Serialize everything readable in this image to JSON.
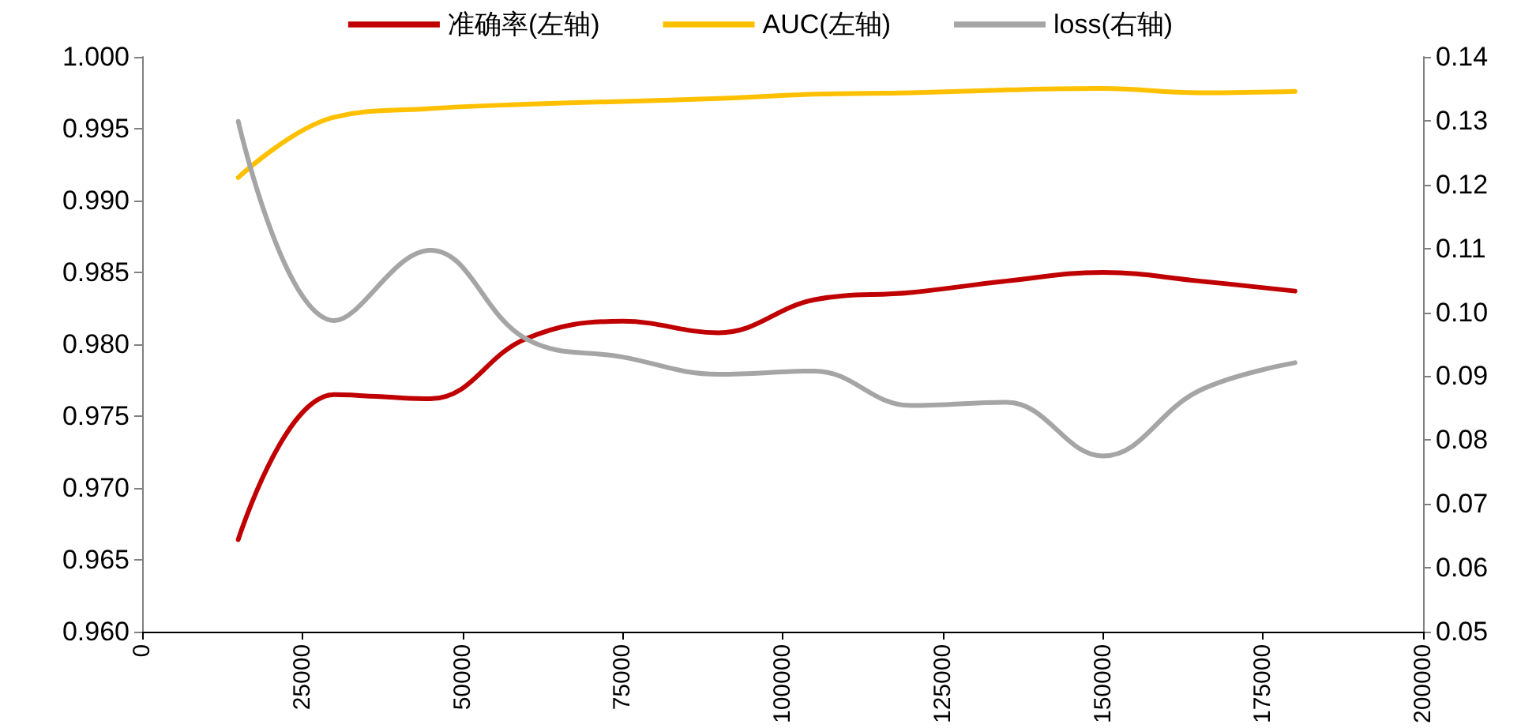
{
  "chart_data": {
    "type": "line",
    "x": [
      15000,
      30000,
      45000,
      60000,
      75000,
      90000,
      105000,
      120000,
      135000,
      150000,
      165000,
      180000
    ],
    "series": [
      {
        "name": "准确率(左轴)",
        "color": "#c00000",
        "values": [
          0.9664,
          0.9765,
          0.9762,
          0.9804,
          0.9816,
          0.9808,
          0.9831,
          0.9836,
          0.9844,
          0.985,
          0.9844,
          0.9837
        ]
      },
      {
        "name": "AUC(左轴)",
        "color": "#ffc000",
        "values": [
          0.9916,
          0.9958,
          0.9964,
          0.9967,
          0.9969,
          0.9971,
          0.9974,
          0.9975,
          0.9977,
          0.9978,
          0.9975,
          0.9976
        ]
      },
      {
        "name": "loss(右轴)",
        "color": "#a5a5a5",
        "axis": "y2",
        "values": [
          0.1299,
          0.0987,
          0.1097,
          0.0958,
          0.093,
          0.0903,
          0.0908,
          0.0854,
          0.0859,
          0.0775,
          0.0877,
          0.0921
        ]
      }
    ],
    "xlim": [
      0,
      200000
    ],
    "xticks": [
      0,
      25000,
      50000,
      75000,
      100000,
      125000,
      150000,
      175000,
      200000
    ],
    "ylim": [
      0.96,
      1.0
    ],
    "yticks": [
      {
        "value": 0.96,
        "label": "0.960"
      },
      0.965,
      {
        "value": 0.97,
        "label": "0.970"
      },
      0.975,
      {
        "value": 0.98,
        "label": "0.980"
      },
      0.985,
      {
        "value": 0.99,
        "label": "0.990"
      },
      0.995,
      {
        "value": 1.0,
        "label": "1.000"
      }
    ],
    "y2lim": [
      0.05,
      0.14
    ],
    "y2ticks": [
      0.05,
      0.06,
      0.07,
      0.08,
      0.09,
      {
        "value": 0.1,
        "label": "0.10"
      },
      0.11,
      0.12,
      0.13,
      0.14
    ],
    "grid": false,
    "legend": "top",
    "marker": "none",
    "line_style": "solid"
  }
}
